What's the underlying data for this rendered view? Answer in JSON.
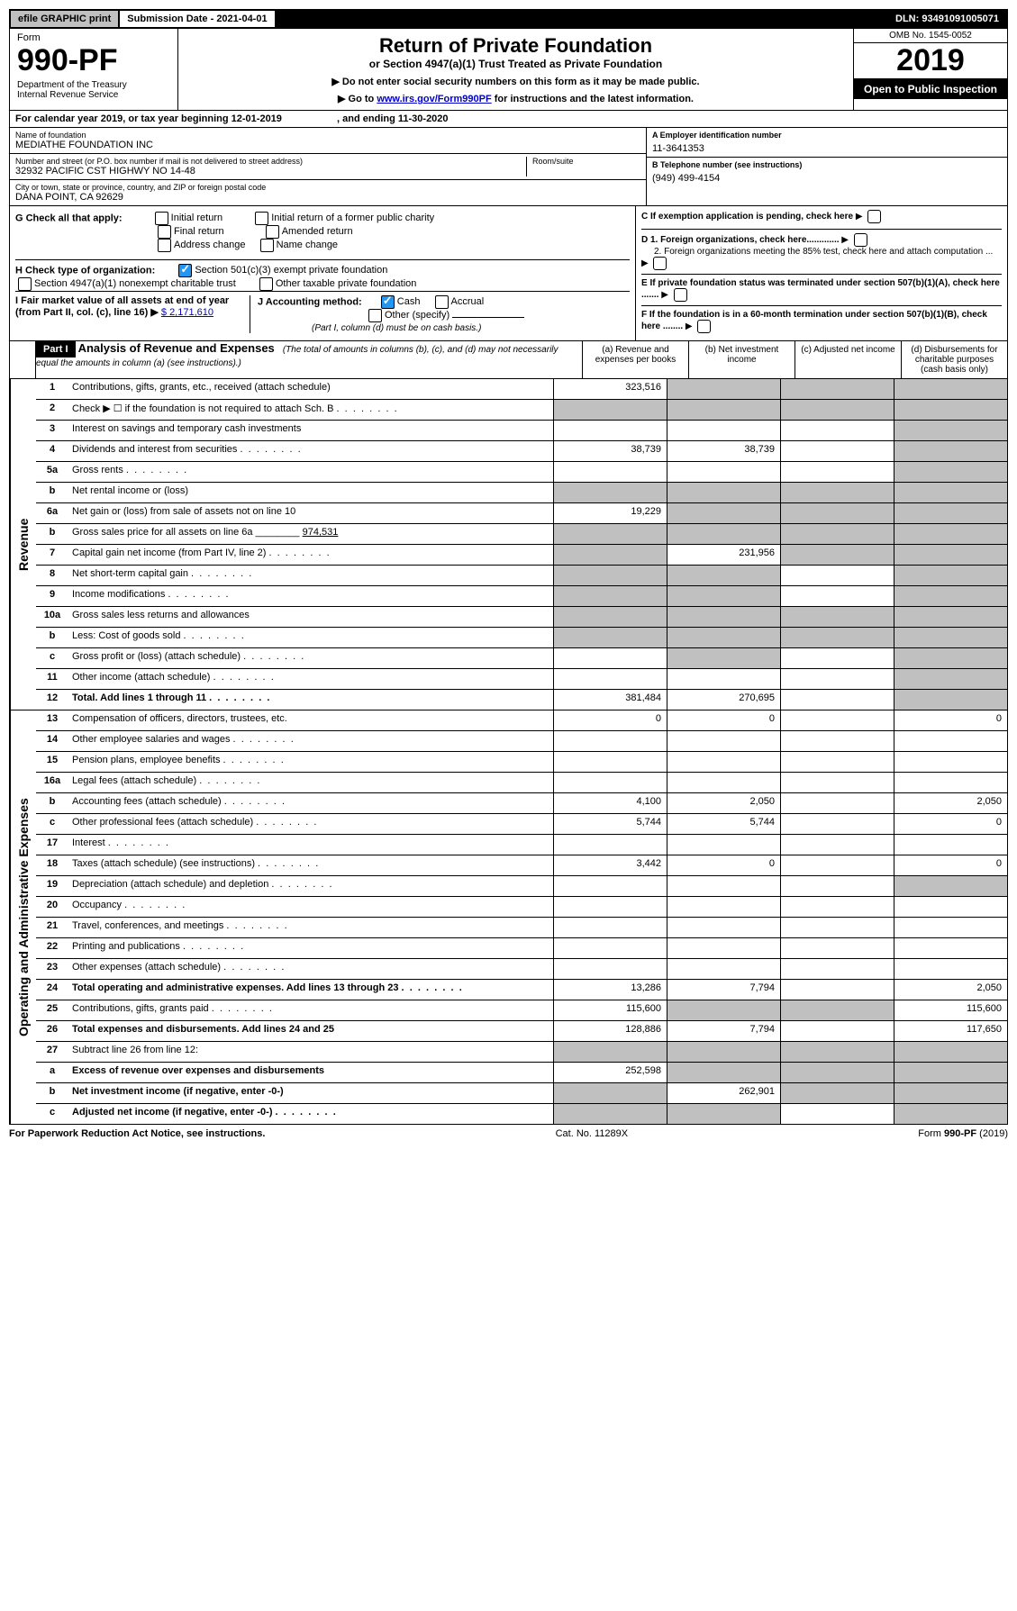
{
  "top": {
    "efile": "efile GRAPHIC print",
    "submission": "Submission Date - 2021-04-01",
    "dln": "DLN: 93491091005071"
  },
  "header": {
    "form_label": "Form",
    "form_num": "990-PF",
    "dept": "Department of the Treasury\nInternal Revenue Service",
    "title": "Return of Private Foundation",
    "subtitle": "or Section 4947(a)(1) Trust Treated as Private Foundation",
    "line1": "▶ Do not enter social security numbers on this form as it may be made public.",
    "line2_pre": "▶ Go to ",
    "line2_link": "www.irs.gov/Form990PF",
    "line2_post": " for instructions and the latest information.",
    "omb": "OMB No. 1545-0052",
    "year": "2019",
    "inspection": "Open to Public Inspection"
  },
  "calyear": "For calendar year 2019, or tax year beginning 12-01-2019                    , and ending 11-30-2020",
  "info": {
    "name_label": "Name of foundation",
    "name": "MEDIATHE FOUNDATION INC",
    "addr_label": "Number and street (or P.O. box number if mail is not delivered to street address)",
    "addr": "32932 PACIFIC CST HIGHWY NO 14-48",
    "room_label": "Room/suite",
    "city_label": "City or town, state or province, country, and ZIP or foreign postal code",
    "city": "DANA POINT, CA  92629",
    "A_label": "A Employer identification number",
    "A": "11-3641353",
    "B_label": "B Telephone number (see instructions)",
    "B": "(949) 499-4154",
    "C": "C If exemption application is pending, check here",
    "D1": "D 1. Foreign organizations, check here.............",
    "D2": "2. Foreign organizations meeting the 85% test, check here and attach computation ...",
    "E": "E  If private foundation status was terminated under section 507(b)(1)(A), check here .......",
    "F": "F  If the foundation is in a 60-month termination under section 507(b)(1)(B), check here ........"
  },
  "G": {
    "label": "G Check all that apply:",
    "opts": [
      "Initial return",
      "Final return",
      "Address change",
      "Initial return of a former public charity",
      "Amended return",
      "Name change"
    ]
  },
  "H": {
    "label": "H Check type of organization:",
    "o1": "Section 501(c)(3) exempt private foundation",
    "o2": "Section 4947(a)(1) nonexempt charitable trust",
    "o3": "Other taxable private foundation"
  },
  "I": {
    "label": "I Fair market value of all assets at end of year (from Part II, col. (c), line 16) ▶",
    "value": "$  2,171,610"
  },
  "J": {
    "label": "J Accounting method:",
    "cash": "Cash",
    "accrual": "Accrual",
    "other": "Other (specify)",
    "note": "(Part I, column (d) must be on cash basis.)"
  },
  "part1": {
    "title": "Part I",
    "heading": "Analysis of Revenue and Expenses",
    "note": "(The total of amounts in columns (b), (c), and (d) may not necessarily equal the amounts in column (a) (see instructions).)",
    "col_a": "(a)   Revenue and expenses per books",
    "col_b": "(b)  Net investment income",
    "col_c": "(c)  Adjusted net income",
    "col_d": "(d)  Disbursements for charitable purposes (cash basis only)"
  },
  "rev_label": "Revenue",
  "exp_label": "Operating and Administrative Expenses",
  "rows": {
    "r1": {
      "n": "1",
      "d": "Contributions, gifts, grants, etc., received (attach schedule)",
      "a": "323,516",
      "bgrey": true,
      "cgrey": true,
      "dgrey": true
    },
    "r2": {
      "n": "2",
      "d": "Check ▶ ☐ if the foundation is not required to attach Sch. B",
      "dots": true,
      "agrey": true,
      "bgrey": true,
      "cgrey": true,
      "dgrey": true
    },
    "r3": {
      "n": "3",
      "d": "Interest on savings and temporary cash investments",
      "dgrey": true
    },
    "r4": {
      "n": "4",
      "d": "Dividends and interest from securities",
      "dots": true,
      "a": "38,739",
      "b": "38,739",
      "dgrey": true
    },
    "r5a": {
      "n": "5a",
      "d": "Gross rents",
      "dots": true,
      "dgrey": true
    },
    "r5b": {
      "n": "b",
      "d": "Net rental income or (loss)",
      "agrey": true,
      "bgrey": true,
      "cgrey": true,
      "dgrey": true
    },
    "r6a": {
      "n": "6a",
      "d": "Net gain or (loss) from sale of assets not on line 10",
      "a": "19,229",
      "bgrey": true,
      "cgrey": true,
      "dgrey": true
    },
    "r6b": {
      "n": "b",
      "d": "Gross sales price for all assets on line 6a ________",
      "val": "974,531",
      "agrey": true,
      "bgrey": true,
      "cgrey": true,
      "dgrey": true
    },
    "r7": {
      "n": "7",
      "d": "Capital gain net income (from Part IV, line 2)",
      "dots": true,
      "agrey": true,
      "b": "231,956",
      "cgrey": true,
      "dgrey": true
    },
    "r8": {
      "n": "8",
      "d": "Net short-term capital gain",
      "dots": true,
      "agrey": true,
      "bgrey": true,
      "dgrey": true
    },
    "r9": {
      "n": "9",
      "d": "Income modifications",
      "dots": true,
      "agrey": true,
      "bgrey": true,
      "dgrey": true
    },
    "r10a": {
      "n": "10a",
      "d": "Gross sales less returns and allowances",
      "agrey": true,
      "bgrey": true,
      "cgrey": true,
      "dgrey": true
    },
    "r10b": {
      "n": "b",
      "d": "Less: Cost of goods sold",
      "dots": true,
      "agrey": true,
      "bgrey": true,
      "cgrey": true,
      "dgrey": true
    },
    "r10c": {
      "n": "c",
      "d": "Gross profit or (loss) (attach schedule)",
      "dots": true,
      "bgrey": true,
      "dgrey": true
    },
    "r11": {
      "n": "11",
      "d": "Other income (attach schedule)",
      "dots": true,
      "dgrey": true
    },
    "r12": {
      "n": "12",
      "d": "Total. Add lines 1 through 11",
      "dots": true,
      "bold": true,
      "a": "381,484",
      "b": "270,695",
      "dgrey": true
    },
    "r13": {
      "n": "13",
      "d": "Compensation of officers, directors, trustees, etc.",
      "a": "0",
      "b": "0",
      "dd": "0"
    },
    "r14": {
      "n": "14",
      "d": "Other employee salaries and wages",
      "dots": true
    },
    "r15": {
      "n": "15",
      "d": "Pension plans, employee benefits",
      "dots": true
    },
    "r16a": {
      "n": "16a",
      "d": "Legal fees (attach schedule)",
      "dots": true
    },
    "r16b": {
      "n": "b",
      "d": "Accounting fees (attach schedule)",
      "dots": true,
      "a": "4,100",
      "b": "2,050",
      "dd": "2,050"
    },
    "r16c": {
      "n": "c",
      "d": "Other professional fees (attach schedule)",
      "dots": true,
      "a": "5,744",
      "b": "5,744",
      "dd": "0"
    },
    "r17": {
      "n": "17",
      "d": "Interest",
      "dots": true
    },
    "r18": {
      "n": "18",
      "d": "Taxes (attach schedule) (see instructions)",
      "dots": true,
      "a": "3,442",
      "b": "0",
      "dd": "0"
    },
    "r19": {
      "n": "19",
      "d": "Depreciation (attach schedule) and depletion",
      "dots": true,
      "dgrey": true
    },
    "r20": {
      "n": "20",
      "d": "Occupancy",
      "dots": true
    },
    "r21": {
      "n": "21",
      "d": "Travel, conferences, and meetings",
      "dots": true
    },
    "r22": {
      "n": "22",
      "d": "Printing and publications",
      "dots": true
    },
    "r23": {
      "n": "23",
      "d": "Other expenses (attach schedule)",
      "dots": true
    },
    "r24": {
      "n": "24",
      "d": "Total operating and administrative expenses. Add lines 13 through 23",
      "dots": true,
      "bold": true,
      "a": "13,286",
      "b": "7,794",
      "dd": "2,050"
    },
    "r25": {
      "n": "25",
      "d": "Contributions, gifts, grants paid",
      "dots": true,
      "a": "115,600",
      "bgrey": true,
      "cgrey": true,
      "dd": "115,600"
    },
    "r26": {
      "n": "26",
      "d": "Total expenses and disbursements. Add lines 24 and 25",
      "bold": true,
      "a": "128,886",
      "b": "7,794",
      "dd": "117,650"
    },
    "r27": {
      "n": "27",
      "d": "Subtract line 26 from line 12:",
      "agrey": true,
      "bgrey": true,
      "cgrey": true,
      "dgrey": true
    },
    "r27a": {
      "n": "a",
      "d": "Excess of revenue over expenses and disbursements",
      "bold": true,
      "a": "252,598",
      "bgrey": true,
      "cgrey": true,
      "dgrey": true
    },
    "r27b": {
      "n": "b",
      "d": "Net investment income (if negative, enter -0-)",
      "bold": true,
      "agrey": true,
      "b": "262,901",
      "cgrey": true,
      "dgrey": true
    },
    "r27c": {
      "n": "c",
      "d": "Adjusted net income (if negative, enter -0-)",
      "dots": true,
      "bold": true,
      "agrey": true,
      "bgrey": true,
      "dgrey": true
    }
  },
  "footer": {
    "left": "For Paperwork Reduction Act Notice, see instructions.",
    "mid": "Cat. No. 11289X",
    "right": "Form 990-PF (2019)"
  }
}
